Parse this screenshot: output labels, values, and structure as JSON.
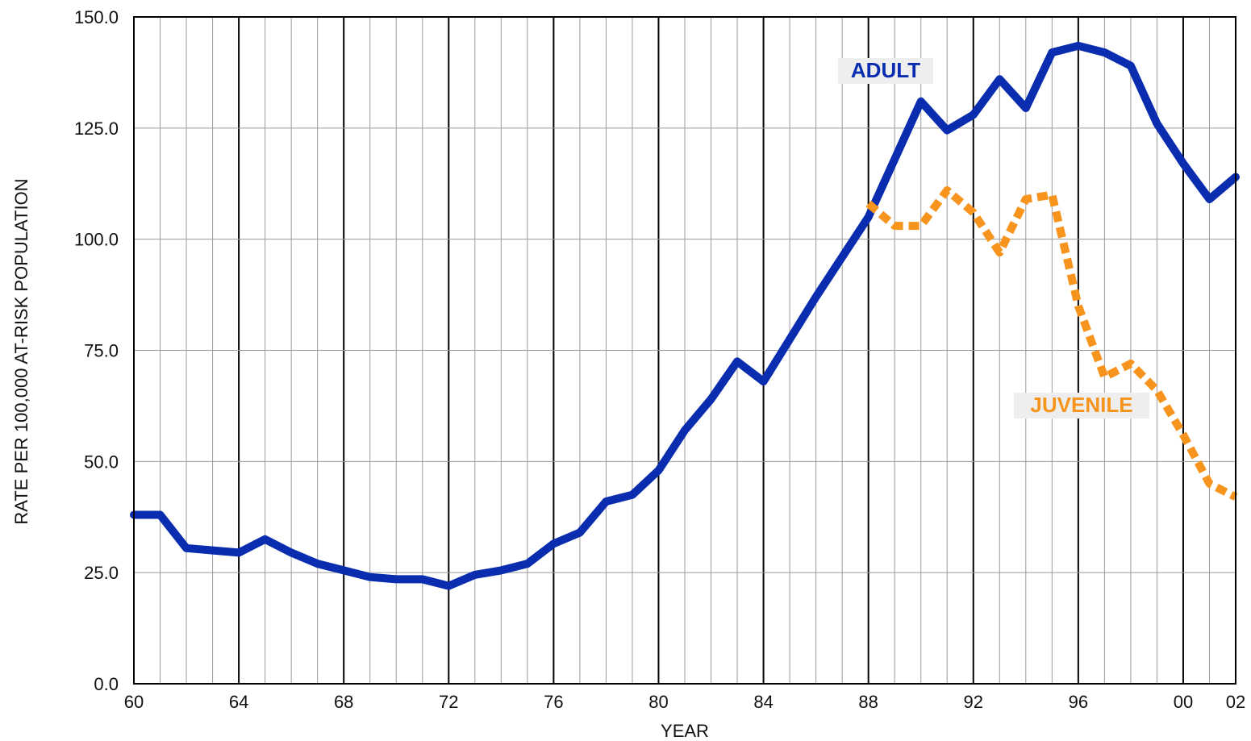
{
  "chart_data": {
    "type": "line",
    "title": "",
    "xlabel": "YEAR",
    "ylabel": "RATE PER 100,000 AT-RISK POPULATION",
    "xlim": [
      1960,
      2002
    ],
    "ylim": [
      0,
      150
    ],
    "grid": true,
    "x_tick_values": [
      1960,
      1964,
      1968,
      1972,
      1976,
      1980,
      1984,
      1988,
      1992,
      1996,
      2000,
      2002
    ],
    "x_tick_labels": [
      "60",
      "64",
      "68",
      "72",
      "76",
      "80",
      "84",
      "88",
      "92",
      "96",
      "00",
      "02"
    ],
    "y_tick_values": [
      0,
      25,
      50,
      75,
      100,
      125,
      150
    ],
    "y_tick_labels": [
      "0.0",
      "25.0",
      "50.0",
      "75.0",
      "100.0",
      "125.0",
      "150.0"
    ],
    "series": [
      {
        "name": "ADULT",
        "color": "#0a2db0",
        "style": "solid",
        "x": [
          1960,
          1961,
          1962,
          1963,
          1964,
          1965,
          1966,
          1967,
          1968,
          1969,
          1970,
          1971,
          1972,
          1973,
          1974,
          1975,
          1976,
          1977,
          1978,
          1979,
          1980,
          1981,
          1982,
          1983,
          1984,
          1985,
          1986,
          1987,
          1988,
          1989,
          1990,
          1991,
          1992,
          1993,
          1994,
          1995,
          1996,
          1997,
          1998,
          1999,
          2000,
          2001,
          2002
        ],
        "values": [
          38,
          38,
          30.5,
          30,
          29.5,
          32.5,
          29.5,
          27,
          25.5,
          24,
          23.5,
          23.5,
          22,
          24.5,
          25.5,
          27,
          31.5,
          34,
          41,
          42.5,
          48,
          57,
          64,
          72.5,
          68,
          77.5,
          87,
          96,
          105,
          118,
          131,
          124.5,
          128,
          136,
          129.5,
          142,
          143.5,
          142,
          139,
          126,
          117,
          109,
          114
        ]
      },
      {
        "name": "JUVENILE",
        "color": "#f7941d",
        "style": "dashed",
        "x": [
          1988,
          1989,
          1990,
          1991,
          1992,
          1993,
          1994,
          1995,
          1996,
          1997,
          1998,
          1999,
          2000,
          2001,
          2002
        ],
        "values": [
          108,
          103,
          103,
          111,
          106,
          97,
          109,
          110,
          85,
          69,
          72,
          66,
          56,
          45,
          42
        ]
      }
    ]
  }
}
